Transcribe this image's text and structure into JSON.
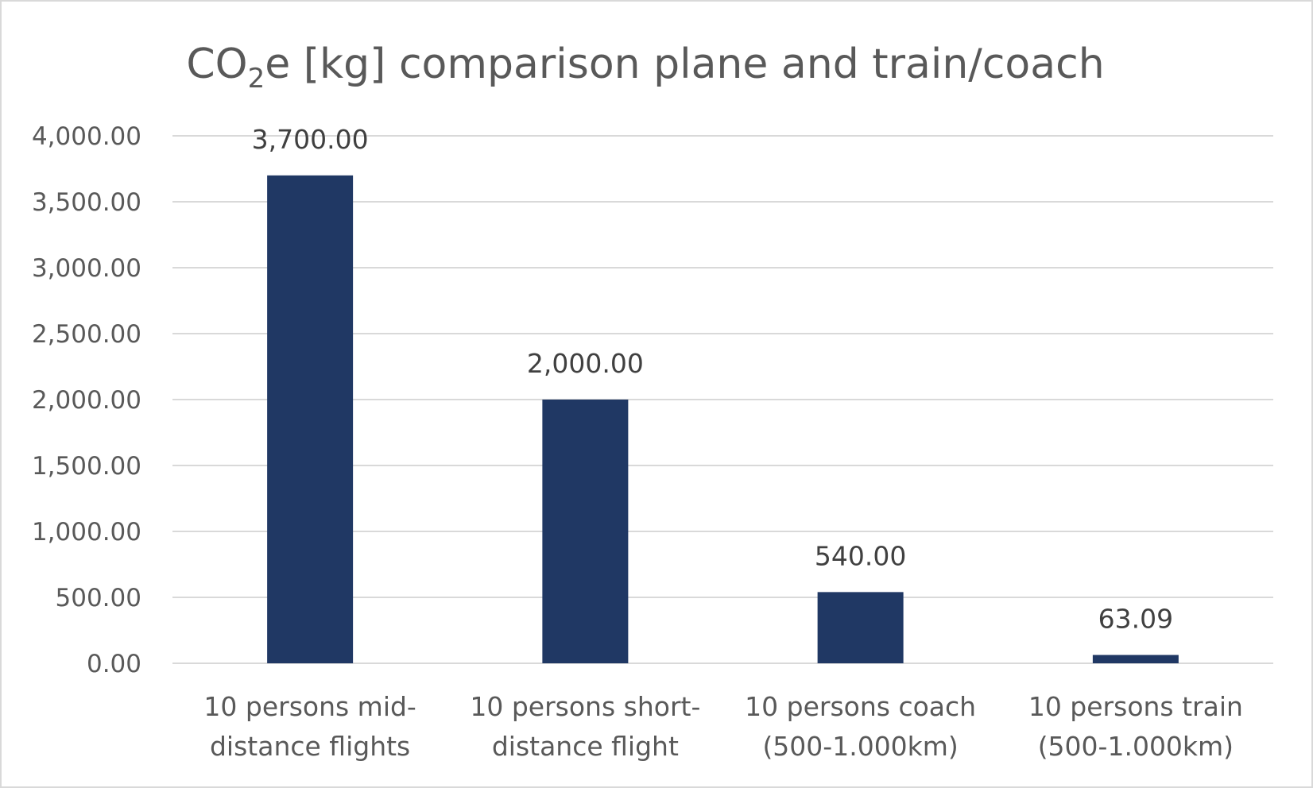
{
  "chart_data": {
    "type": "bar",
    "title": {
      "prefix": "CO",
      "subscript": "2",
      "suffix": "e [kg] comparison plane and train/coach"
    },
    "categories": [
      [
        "10 persons mid-",
        "distance flights"
      ],
      [
        "10 persons short-",
        "distance flight"
      ],
      [
        "10 persons coach",
        "(500-1.000km)"
      ],
      [
        "10 persons train",
        "(500-1.000km)"
      ]
    ],
    "values": [
      3700,
      2000,
      540,
      63.09
    ],
    "data_labels": [
      "3,700.00",
      "2,000.00",
      "540.00",
      "63.09"
    ],
    "yticks": [
      0,
      500,
      1000,
      1500,
      2000,
      2500,
      3000,
      3500,
      4000
    ],
    "ytick_labels": [
      "0.00",
      "500.00",
      "1,000.00",
      "1,500.00",
      "2,000.00",
      "2,500.00",
      "3,000.00",
      "3,500.00",
      "4,000.00"
    ],
    "ylim": [
      0,
      4000
    ],
    "xlabel": "",
    "ylabel": "",
    "grid": true,
    "legend": "none",
    "bar_color": "#203864"
  }
}
